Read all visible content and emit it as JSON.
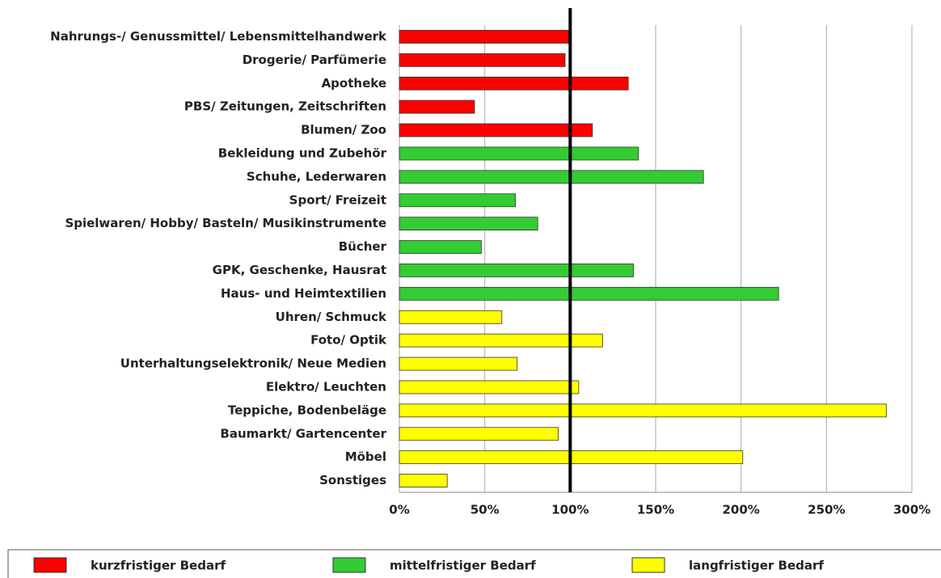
{
  "chart_data": {
    "type": "hbar",
    "categories": [
      "Nahrungs-/ Genussmittel/ Lebensmittelhandwerk",
      "Drogerie/ Parfümerie",
      "Apotheke",
      "PBS/ Zeitungen, Zeitschriften",
      "Blumen/ Zoo",
      "Bekleidung und Zubehör",
      "Schuhe, Lederwaren",
      "Sport/ Freizeit",
      "Spielwaren/ Hobby/ Basteln/ Musikinstrumente",
      "Bücher",
      "GPK, Geschenke, Hausrat",
      "Haus- und Heimtextilien",
      "Uhren/ Schmuck",
      "Foto/ Optik",
      "Unterhaltungselektronik/ Neue Medien",
      "Elektro/ Leuchten",
      "Teppiche, Bodenbeläge",
      "Baumarkt/ Gartencenter",
      "Möbel",
      "Sonstiges"
    ],
    "series": [
      {
        "name": "kurzfristiger Bedarf",
        "color": "#ff0000",
        "values": [
          99,
          97,
          134,
          44,
          113,
          null,
          null,
          null,
          null,
          null,
          null,
          null,
          null,
          null,
          null,
          null,
          null,
          null,
          null,
          null
        ]
      },
      {
        "name": "mittelfristiger Bedarf",
        "color": "#33cc33",
        "values": [
          null,
          null,
          null,
          null,
          null,
          140,
          178,
          68,
          81,
          48,
          137,
          222,
          null,
          null,
          null,
          null,
          null,
          null,
          null,
          null
        ]
      },
      {
        "name": "langfristiger Bedarf",
        "color": "#ffff00",
        "values": [
          null,
          null,
          null,
          null,
          null,
          null,
          null,
          null,
          null,
          null,
          null,
          null,
          60,
          119,
          69,
          105,
          285,
          93,
          201,
          28
        ]
      }
    ],
    "xlim": [
      0,
      300
    ],
    "xticks": [
      {
        "value": 0,
        "label": "0%"
      },
      {
        "value": 50,
        "label": "50%"
      },
      {
        "value": 100,
        "label": "100%"
      },
      {
        "value": 150,
        "label": "150%"
      },
      {
        "value": 200,
        "label": "200%"
      },
      {
        "value": 250,
        "label": "250%"
      },
      {
        "value": 300,
        "label": "300%"
      }
    ],
    "reference_x": 100,
    "grid": true,
    "legend": "bottom"
  }
}
